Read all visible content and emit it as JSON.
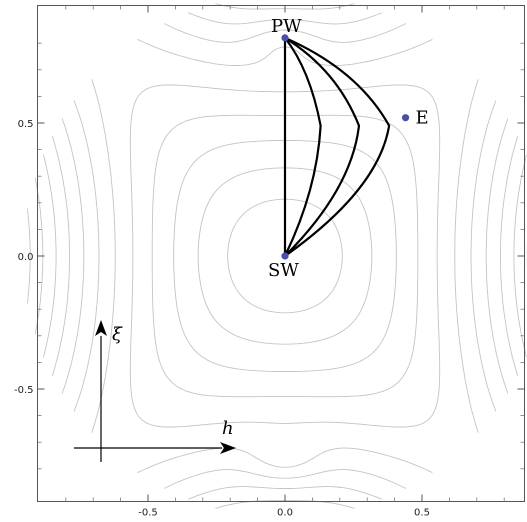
{
  "chart_data": {
    "type": "contour",
    "xlim": [
      -0.9,
      0.9
    ],
    "ylim": [
      -0.9,
      0.9
    ],
    "x_ticks": [
      {
        "value": -0.5,
        "label": "-0.5"
      },
      {
        "value": 0.0,
        "label": "0.0"
      },
      {
        "value": 0.5,
        "label": "0.5"
      }
    ],
    "y_ticks": [
      {
        "value": 0.5,
        "label": "0.5"
      },
      {
        "value": 0.0,
        "label": "0.0"
      },
      {
        "value": -0.5,
        "label": "-0.5"
      }
    ],
    "points": [
      {
        "label": "PW",
        "x": 0.0,
        "y": 0.82,
        "color": "#4a4fa8"
      },
      {
        "label": "SW",
        "x": 0.0,
        "y": 0.0,
        "color": "#4a4fa8"
      },
      {
        "label": "E",
        "x": 0.44,
        "y": 0.52,
        "color": "#4a4fa8"
      }
    ],
    "paths": [
      {
        "from": "SW",
        "to": "PW",
        "bulge_h": 0.0
      },
      {
        "from": "SW",
        "to": "PW",
        "bulge_h": 0.13
      },
      {
        "from": "SW",
        "to": "PW",
        "bulge_h": 0.27
      },
      {
        "from": "SW",
        "to": "PW",
        "bulge_h": 0.38
      }
    ],
    "arrows": {
      "horizontal_label": "h",
      "vertical_label": "ξ"
    },
    "contour_color": "#c4c4c4",
    "path_color": "#000000",
    "grid": false
  }
}
